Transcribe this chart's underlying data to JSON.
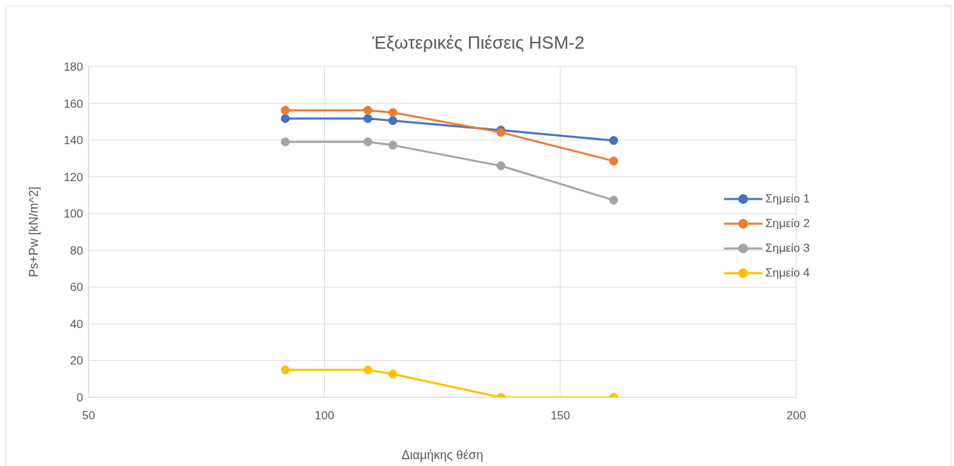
{
  "chart_data": {
    "type": "line",
    "title": "Έξωτερικές Πιέσεις  HSM-2",
    "xlabel": "Διαμήκης θέση",
    "ylabel": "Ps+Pw  [kN/m^2]",
    "x": [
      91.7,
      109.2,
      114.5,
      137.4,
      161.3
    ],
    "series": [
      {
        "name": "Σημείο 1",
        "color": "#4472c4",
        "values": [
          151.7,
          151.7,
          150.6,
          145.4,
          139.8
        ]
      },
      {
        "name": "Σημείο 2",
        "color": "#ed7d31",
        "values": [
          156.2,
          156.2,
          155.0,
          144.2,
          128.6
        ]
      },
      {
        "name": "Σημείο 3",
        "color": "#a5a5a5",
        "values": [
          139.0,
          139.0,
          137.2,
          126.0,
          107.3
        ]
      },
      {
        "name": "Σημείο 4",
        "color": "#ffc000",
        "values": [
          14.9,
          14.9,
          12.7,
          0,
          0
        ]
      }
    ],
    "xlim": [
      50,
      200
    ],
    "xticks": [
      50,
      100,
      150,
      200
    ],
    "ylim": [
      0,
      180
    ],
    "yticks": [
      0,
      20,
      40,
      60,
      80,
      100,
      120,
      140,
      160,
      180
    ],
    "grid": true,
    "legend": "right",
    "marker": "circle",
    "line_style": "solid"
  }
}
